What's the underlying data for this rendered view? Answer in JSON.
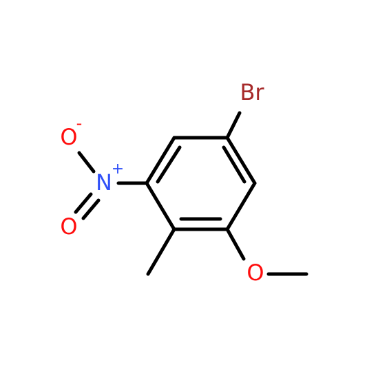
{
  "atoms": {
    "bromine": "Br",
    "methoxy_oxygen": "O",
    "nitrogen": "N",
    "nitrogen_charge": "+",
    "oxygen_top": "O",
    "oxygen_top_charge": "-",
    "oxygen_bottom": "O"
  }
}
